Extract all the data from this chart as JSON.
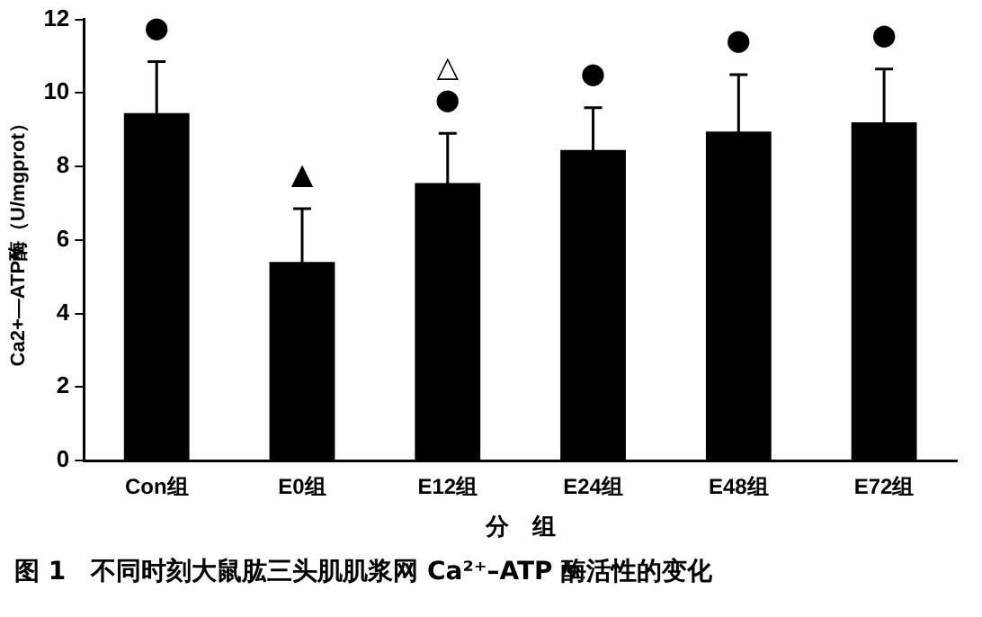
{
  "chart_data": {
    "type": "bar",
    "title": "图 1　不同时刻大鼠肱三头肌肌浆网 Ca²⁺–ATP 酶活性的变化",
    "xlabel": "分　组",
    "ylabel": "Ca2+—ATP酶（U/mgprot）",
    "categories": [
      "Con组",
      "E0组",
      "E12组",
      "E24组",
      "E48组",
      "E72组"
    ],
    "values": [
      9.45,
      5.4,
      7.55,
      8.45,
      8.95,
      9.2
    ],
    "errors": [
      1.4,
      1.45,
      1.35,
      1.15,
      1.55,
      1.45
    ],
    "color": "#000000",
    "ylim": [
      0,
      12
    ],
    "yticks": [
      0,
      2,
      4,
      6,
      8,
      10,
      12
    ],
    "grid": false,
    "legend": false,
    "annotations": [
      "●",
      "▲",
      "△●",
      "●",
      "●",
      "●"
    ]
  }
}
